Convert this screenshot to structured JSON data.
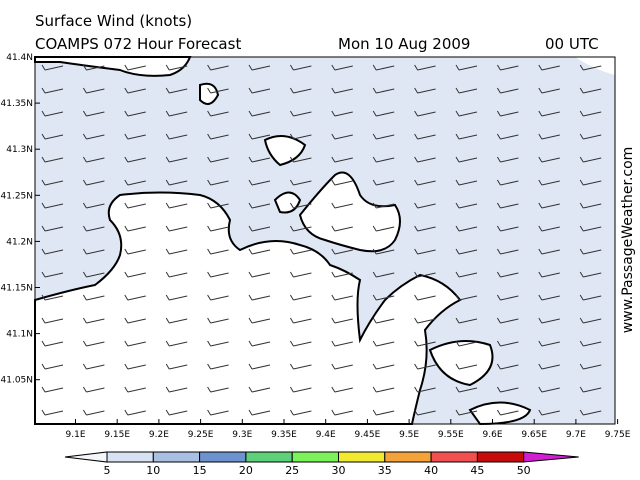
{
  "header": {
    "title": "Surface Wind (knots)",
    "model": "COAMPS 072 Hour Forecast",
    "date": "Mon 10 Aug 2009",
    "time": "00 UTC"
  },
  "map": {
    "lat_labels": [
      "41.4N",
      "41.35N",
      "41.3N",
      "41.25N",
      "41.2N",
      "41.15N",
      "41.1N",
      "41.05N"
    ],
    "lon_labels": [
      "9.1E",
      "9.15E",
      "9.2E",
      "9.25E",
      "9.3E",
      "9.35E",
      "9.4E",
      "9.45E",
      "9.5E",
      "9.55E",
      "9.6E",
      "9.65E",
      "9.7E",
      "9.75E"
    ],
    "watermark": "www.PassageWeather.com"
  },
  "colorbar": {
    "labels": [
      "5",
      "10",
      "15",
      "20",
      "25",
      "30",
      "35",
      "40",
      "45",
      "50"
    ],
    "colors": [
      "#f4f6fc",
      "#d8e2f2",
      "#a9c0e2",
      "#6c93d0",
      "#5fd07a",
      "#7cf25a",
      "#f2ea2e",
      "#f4a23a",
      "#f05050",
      "#c80a0a",
      "#d21ed2"
    ]
  }
}
